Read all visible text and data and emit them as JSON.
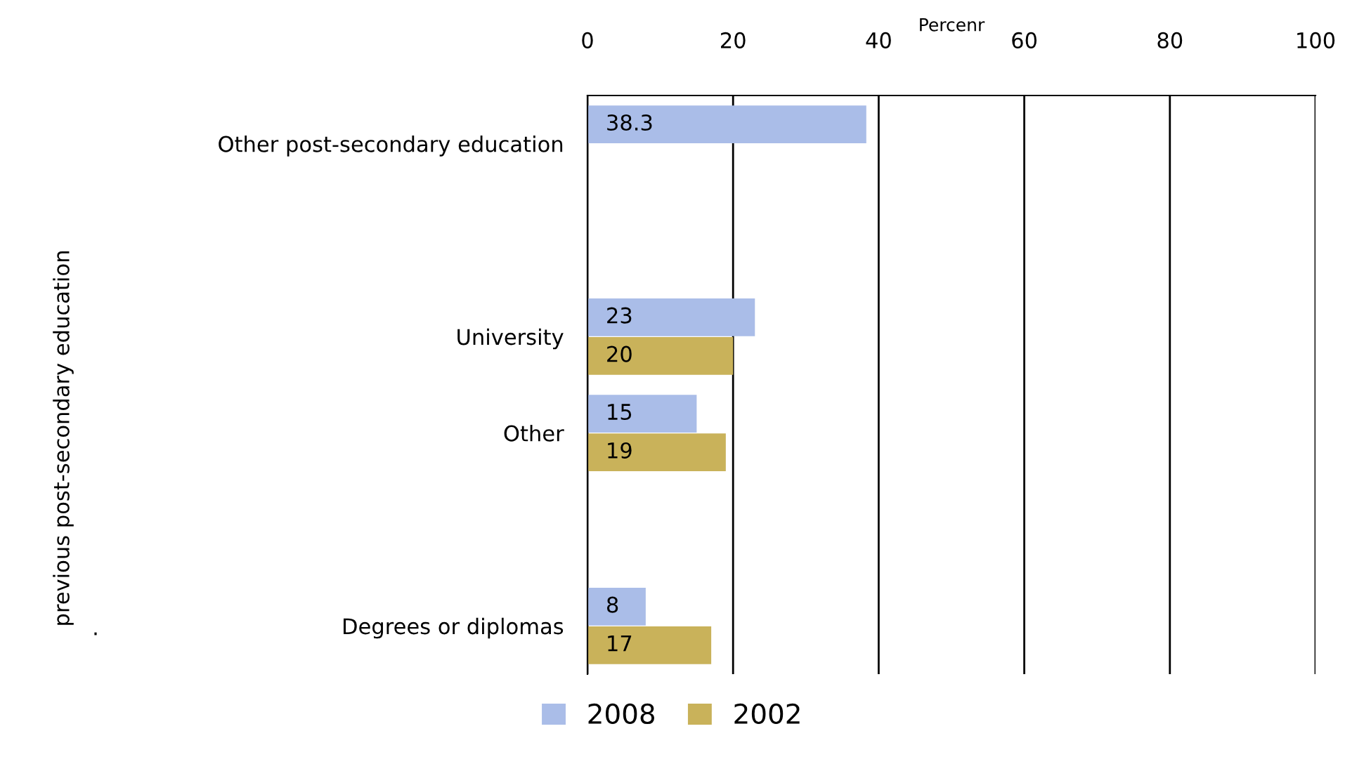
{
  "chart_data": {
    "type": "bar",
    "orientation": "horizontal",
    "xlabel": "Percenr",
    "categories": [
      "Other post-secondary education",
      null,
      "University",
      "Other",
      null,
      "Degrees or diplomas"
    ],
    "series": [
      {
        "name": "2008",
        "color": "#aabde8",
        "values": [
          38.3,
          null,
          23,
          15,
          null,
          8
        ]
      },
      {
        "name": "2002",
        "color": "#c9b25a",
        "values": [
          null,
          null,
          20,
          19,
          null,
          17
        ]
      }
    ],
    "xlim": [
      0,
      100
    ],
    "xticks": [
      0,
      20,
      40,
      60,
      80,
      100
    ],
    "grid": "x",
    "data_labels": true,
    "legend": "bottom",
    "annotations": [
      "previous post-secondary education",
      "."
    ]
  }
}
